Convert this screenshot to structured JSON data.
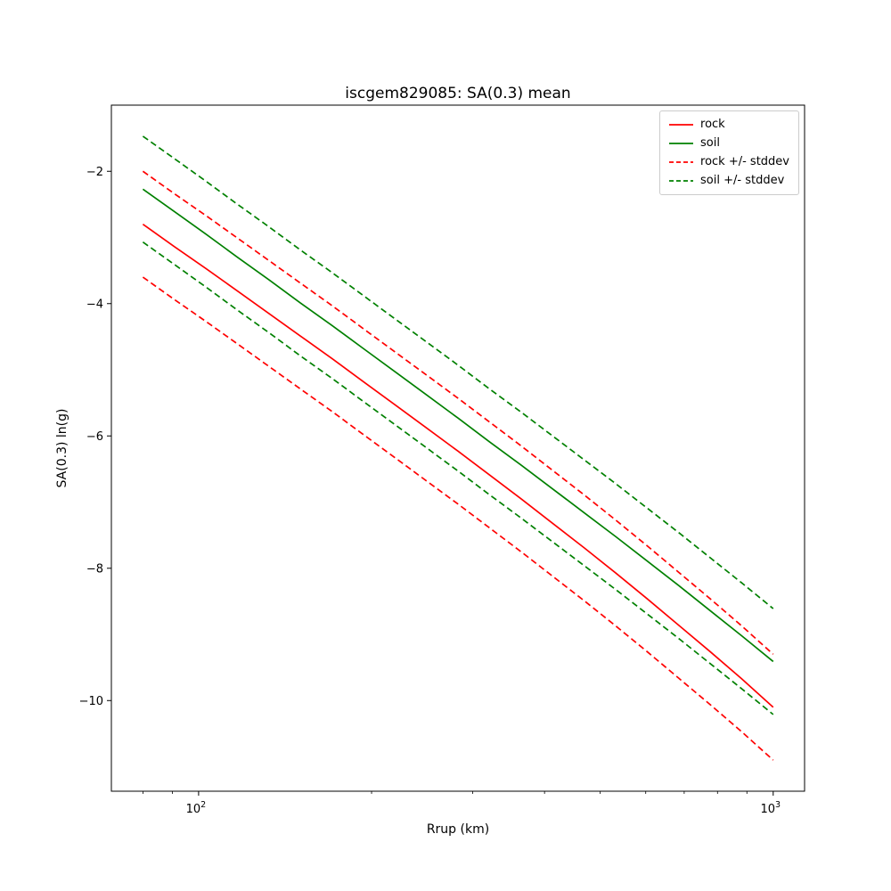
{
  "chart_data": {
    "type": "line",
    "title": "iscgem829085: SA(0.3) mean",
    "xlabel": "Rrup (km)",
    "ylabel": "SA(0.3) ln(g)",
    "x_scale": "log",
    "grid": false,
    "legend_position": "upper right",
    "xlim": [
      70.5,
      1134
    ],
    "ylim": [
      -11.37,
      -1.0
    ],
    "x_ticks": [
      {
        "value": 100,
        "base": "10",
        "exp": "2"
      },
      {
        "value": 1000,
        "base": "10",
        "exp": "3"
      }
    ],
    "y_ticks": [
      {
        "value": -2,
        "label": "−2"
      },
      {
        "value": -4,
        "label": "−4"
      },
      {
        "value": -6,
        "label": "−6"
      },
      {
        "value": -8,
        "label": "−8"
      },
      {
        "value": -10,
        "label": "−10"
      }
    ],
    "x": [
      80.0,
      90.8,
      103.0,
      116.9,
      132.6,
      150.4,
      170.7,
      193.6,
      219.7,
      249.3,
      282.8,
      320.9,
      364.1,
      413.1,
      468.7,
      531.7,
      603.3,
      684.5,
      776.6,
      881.1,
      1000.0
    ],
    "series": [
      {
        "name": "rock",
        "color": "#ff0000",
        "stddev": 0.8,
        "mean": [
          -2.8,
          -3.14,
          -3.47,
          -3.81,
          -4.15,
          -4.49,
          -4.83,
          -5.18,
          -5.53,
          -5.88,
          -6.23,
          -6.59,
          -6.95,
          -7.32,
          -7.69,
          -8.07,
          -8.46,
          -8.86,
          -9.26,
          -9.67,
          -10.1
        ]
      },
      {
        "name": "soil",
        "color": "#008000",
        "stddev": 0.8,
        "mean": [
          -2.27,
          -2.61,
          -2.95,
          -3.3,
          -3.64,
          -3.99,
          -4.33,
          -4.68,
          -5.03,
          -5.38,
          -5.73,
          -6.09,
          -6.44,
          -6.8,
          -7.16,
          -7.52,
          -7.89,
          -8.26,
          -8.64,
          -9.02,
          -9.41
        ]
      }
    ],
    "legend": [
      {
        "label": "rock",
        "color": "#ff0000",
        "dash": false
      },
      {
        "label": "soil",
        "color": "#008000",
        "dash": false
      },
      {
        "label": "rock +/- stddev",
        "color": "#ff0000",
        "dash": true
      },
      {
        "label": "soil +/- stddev",
        "color": "#008000",
        "dash": true
      }
    ],
    "colors": {
      "frame": "#000000",
      "background": "#ffffff",
      "legend_border": "#cccccc"
    }
  }
}
